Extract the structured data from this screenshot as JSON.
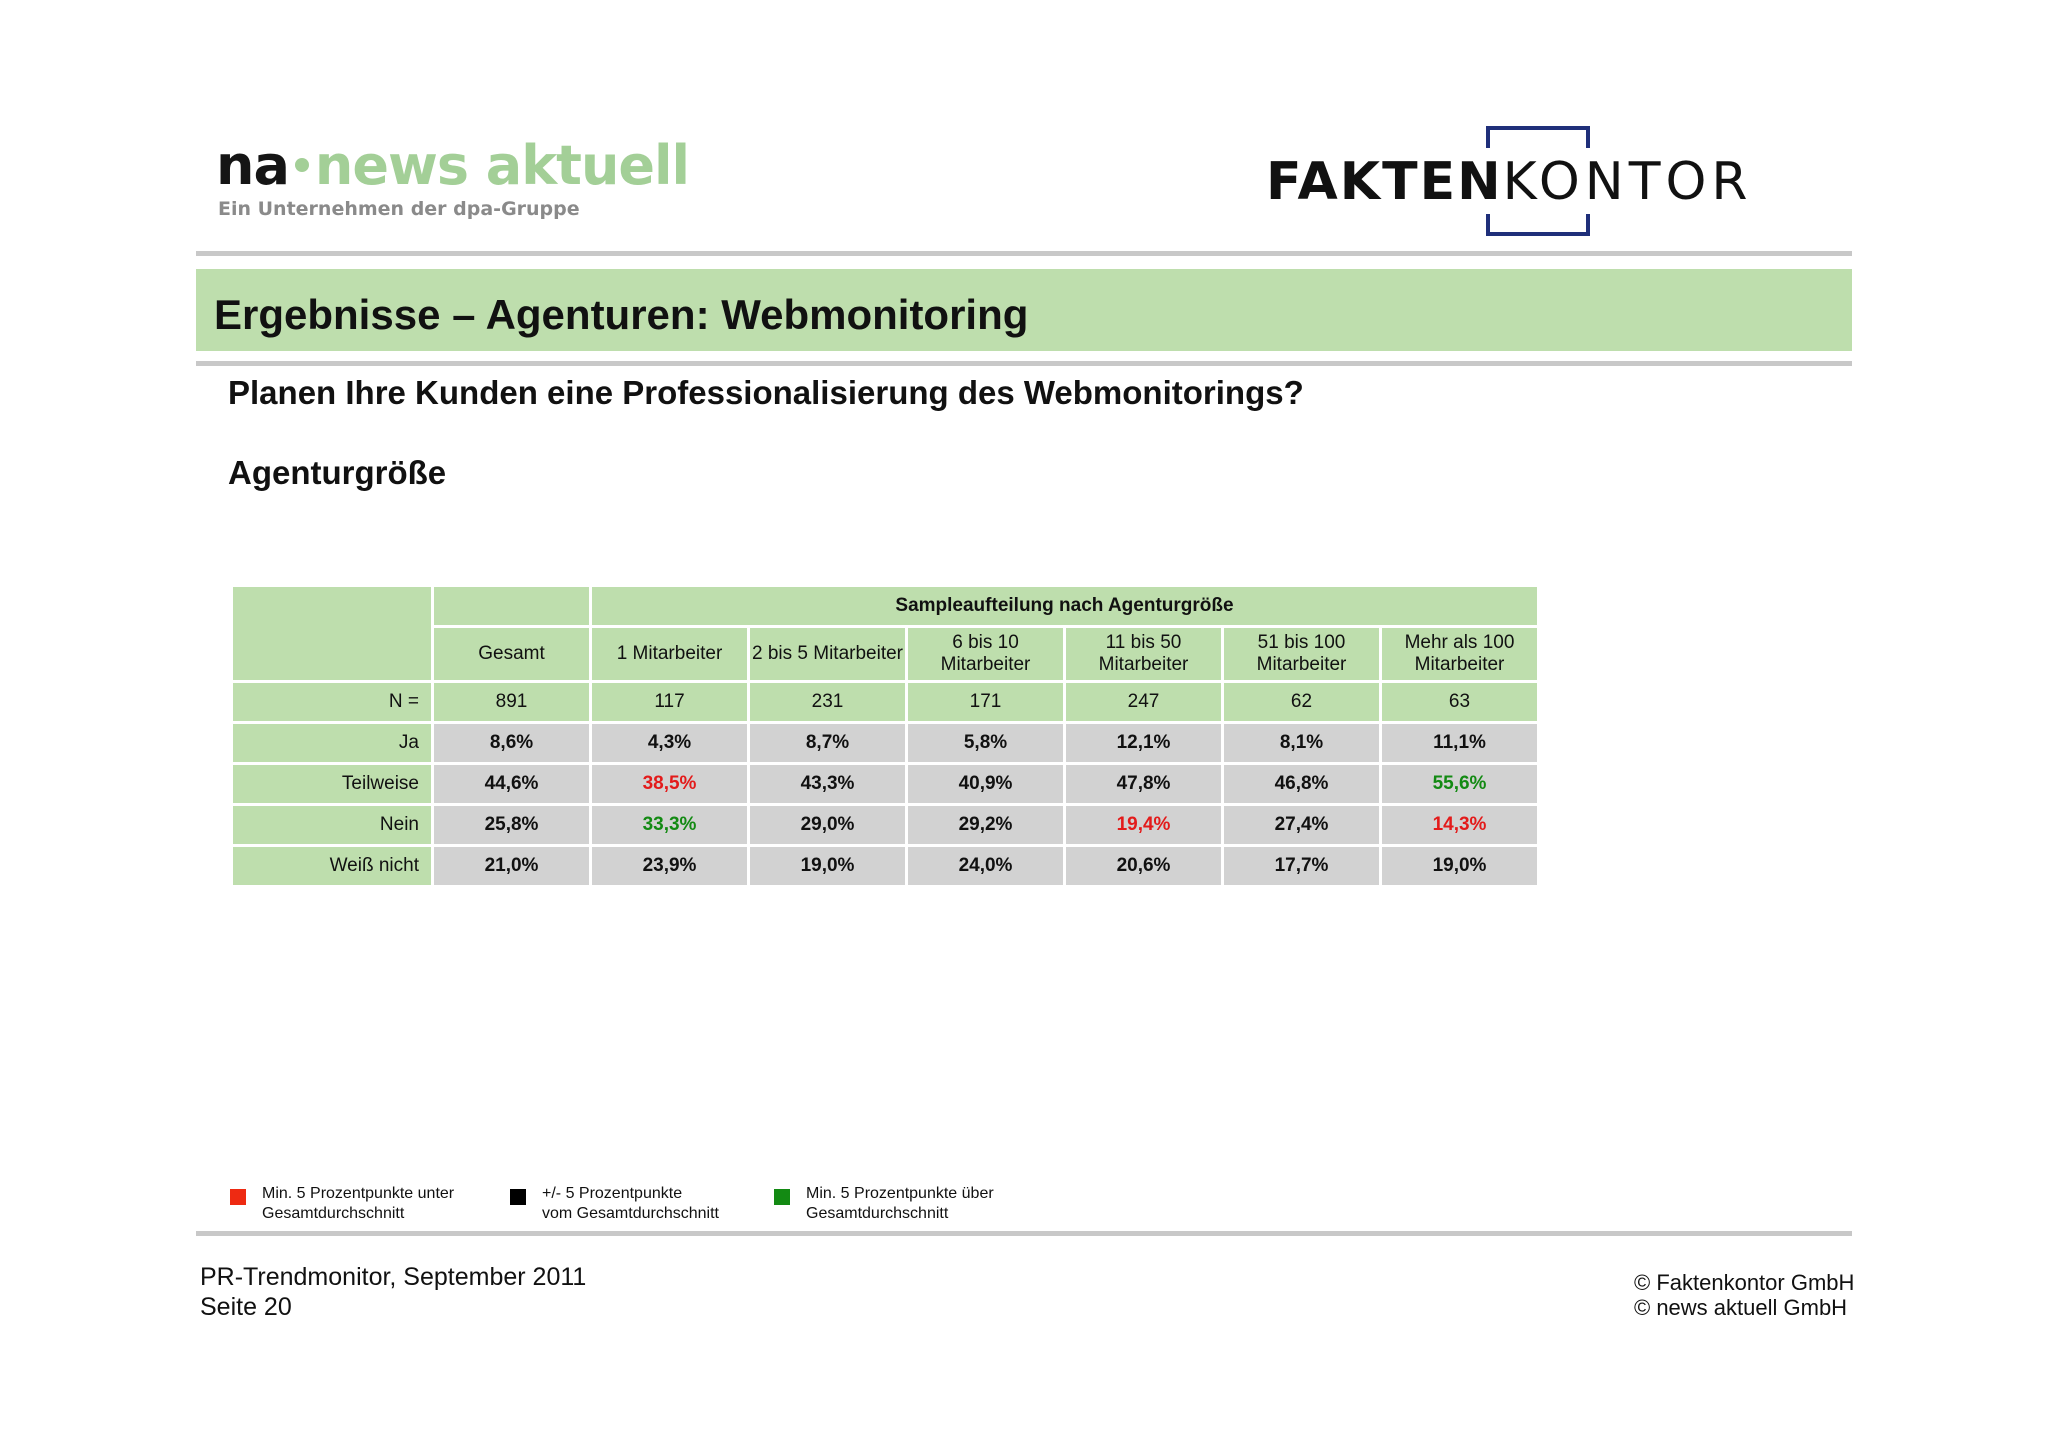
{
  "header": {
    "na_logo": {
      "prefix": "na",
      "brand": "news aktuell",
      "tagline": "Ein Unternehmen der dpa-Gruppe"
    },
    "fk_logo": {
      "bold": "FAKTEN",
      "light": "KONTOR"
    }
  },
  "title": "Ergebnisse – Agenturen: Webmonitoring",
  "question": "Planen Ihre Kunden eine Professionalisierung des Webmonitorings?",
  "subtitle": "Agenturgröße",
  "table": {
    "group_header": "Sampleaufteilung nach Agenturgröße",
    "columns": [
      "Gesamt",
      "1 Mitarbeiter",
      "2 bis 5 Mitarbeiter",
      "6 bis 10 Mitarbeiter",
      "11 bis 50 Mitarbeiter",
      "51 bis 100 Mitarbeiter",
      "Mehr als 100 Mitarbeiter"
    ],
    "n_row": {
      "label": "N =",
      "values": [
        "891",
        "117",
        "231",
        "171",
        "247",
        "62",
        "63"
      ]
    },
    "rows": [
      {
        "label": "Ja",
        "values": [
          "8,6%",
          "4,3%",
          "8,7%",
          "5,8%",
          "12,1%",
          "8,1%",
          "11,1%"
        ],
        "colors": [
          "black",
          "black",
          "black",
          "black",
          "black",
          "black",
          "black"
        ]
      },
      {
        "label": "Teilweise",
        "values": [
          "44,6%",
          "38,5%",
          "43,3%",
          "40,9%",
          "47,8%",
          "46,8%",
          "55,6%"
        ],
        "colors": [
          "black",
          "red",
          "black",
          "black",
          "black",
          "black",
          "green"
        ]
      },
      {
        "label": "Nein",
        "values": [
          "25,8%",
          "33,3%",
          "29,0%",
          "29,2%",
          "19,4%",
          "27,4%",
          "14,3%"
        ],
        "colors": [
          "black",
          "green",
          "black",
          "black",
          "red",
          "black",
          "red"
        ]
      },
      {
        "label": "Weiß nicht",
        "values": [
          "21,0%",
          "23,9%",
          "19,0%",
          "24,0%",
          "20,6%",
          "17,7%",
          "19,0%"
        ],
        "colors": [
          "black",
          "black",
          "black",
          "black",
          "black",
          "black",
          "black"
        ]
      }
    ]
  },
  "legend": [
    {
      "line1": "Min. 5 Prozentpunkte unter",
      "line2": "Gesamtdurchschnitt",
      "color": "#ee2a12"
    },
    {
      "line1": "+/- 5 Prozentpunkte",
      "line2": "vom Gesamtdurchschnitt",
      "color": "#000000"
    },
    {
      "line1": "Min. 5 Prozentpunkte über",
      "line2": "Gesamtdurchschnitt",
      "color": "#138a13"
    }
  ],
  "footer": {
    "line1": "PR-Trendmonitor, September 2011",
    "line2": "Seite 20",
    "copyright1": "© Faktenkontor GmbH",
    "copyright2": "© news aktuell GmbH"
  }
}
